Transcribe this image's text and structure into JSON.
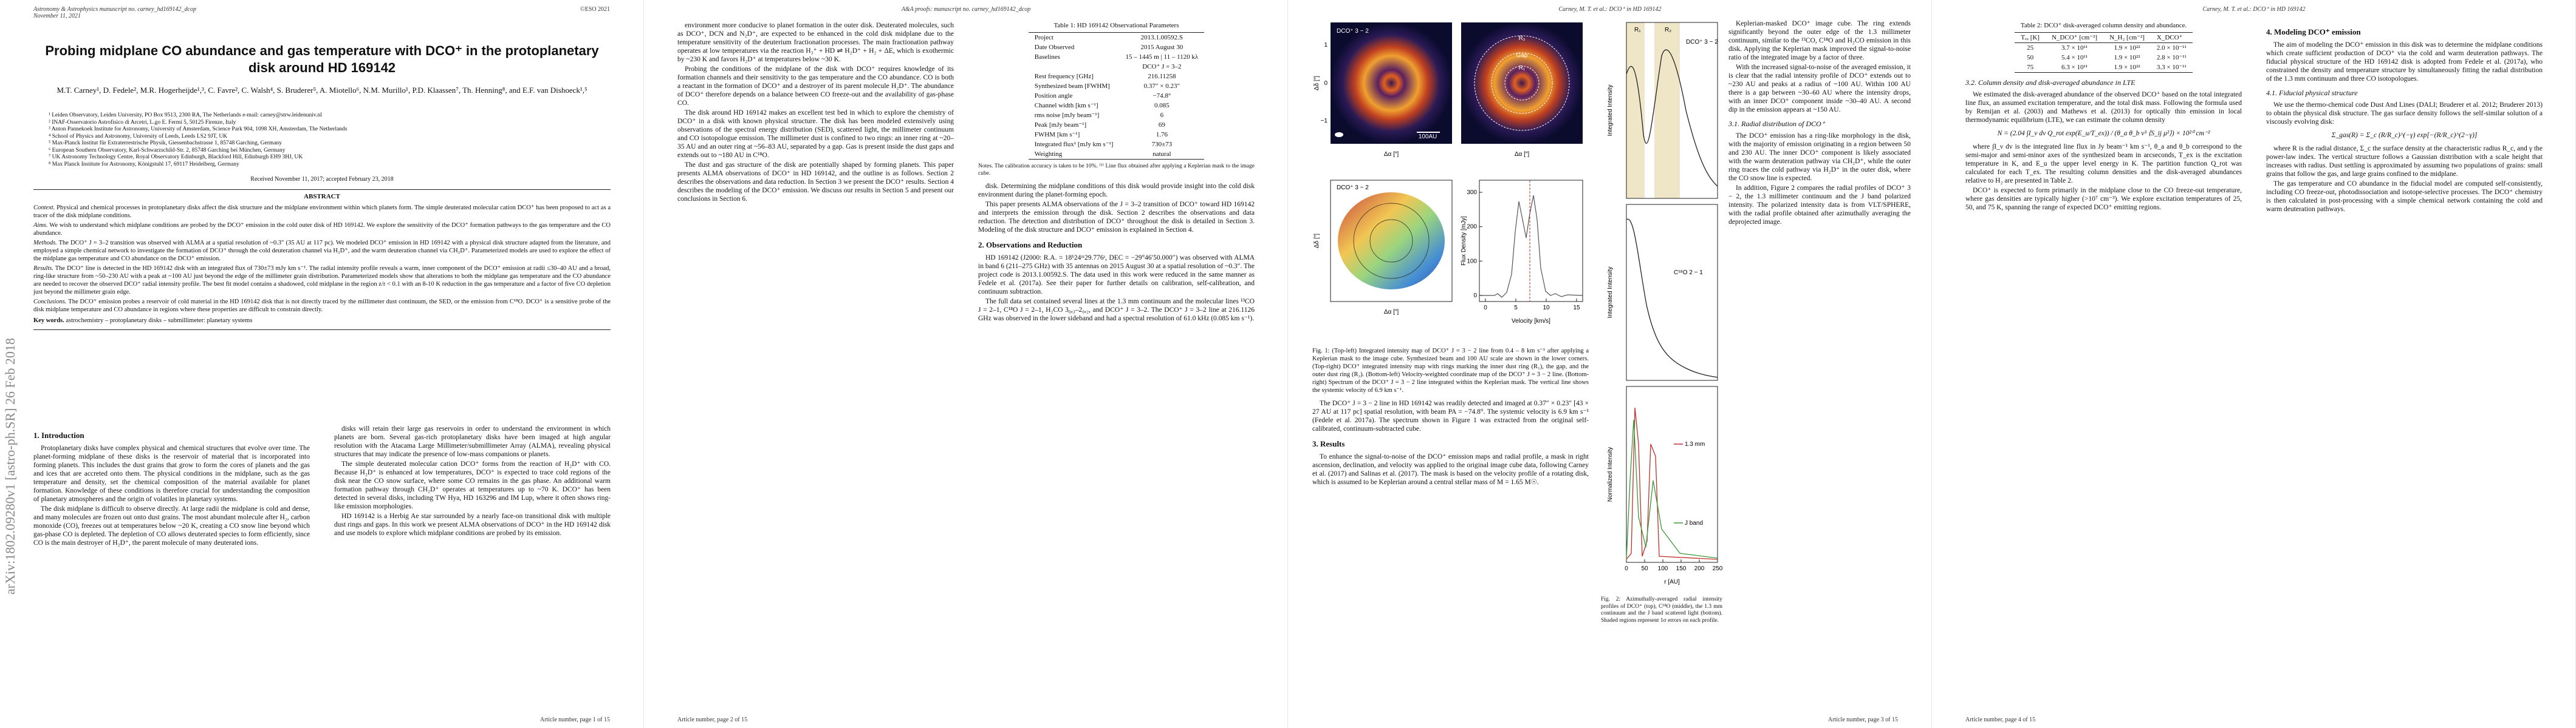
{
  "pages": [
    {
      "header": {
        "left": "Astronomy & Astrophysics manuscript no. carney_hd169142_dcop",
        "date": "November 11, 2021",
        "right": "©ESO 2021"
      },
      "title": "Probing midplane CO abundance and gas temperature with DCO⁺ in the protoplanetary disk around HD 169142",
      "authors": "M.T. Carney¹, D. Fedele², M.R. Hogerheijde¹,³, C. Favre², C. Walsh⁴, S. Bruderer⁵, A. Miotello⁶, N.M. Murillo¹, P.D. Klaassen⁷, Th. Henning⁸, and E.F. van Dishoeck¹,⁵",
      "affiliations": [
        "¹ Leiden Observatory, Leiden University, PO Box 9513, 2300 RA, The Netherlands  e-mail: carney@strw.leidenuniv.nl",
        "² INAF-Osservatorio Astrofisico di Arcetri, L.go E. Fermi 5, 50125 Firenze, Italy",
        "³ Anton Pannekoek Institute for Astronomy, University of Amsterdam, Science Park 904, 1098 XH, Amsterdam, The Netherlands",
        "⁴ School of Physics and Astronomy, University of Leeds, Leeds LS2 9JT, UK",
        "⁵ Max-Planck Institut für Extraterrestrische Physik, Giessenbachstrasse 1, 85748 Garching, Germany",
        "⁶ European Southern Observatory, Karl-Schwarzschild-Str. 2, 85748 Garching bei München, Germany",
        "⁷ UK Astronomy Technology Centre, Royal Observatory Edinburgh, Blackford Hill, Edinburgh EH9 3HJ, UK",
        "⁸ Max Planck Institute for Astronomy, Königstuhl 17, 69117 Heidelberg, Germany"
      ],
      "received": "Received November 11, 2017; accepted February 23, 2018",
      "abstract_heading": "ABSTRACT",
      "abstract": [
        {
          "label": "Context.",
          "text": "Physical and chemical processes in protoplanetary disks affect the disk structure and the midplane environment within which planets form. The simple deuterated molecular cation DCO⁺ has been proposed to act as a tracer of the disk midplane conditions."
        },
        {
          "label": "Aims.",
          "text": "We wish to understand which midplane conditions are probed by the DCO⁺ emission in the cold outer disk of HD 169142. We explore the sensitivity of the DCO⁺ formation pathways to the gas temperature and the CO abundance."
        },
        {
          "label": "Methods.",
          "text": "The DCO⁺ J = 3–2 transition was observed with ALMA at a spatial resolution of ~0.3″ (35 AU at 117 pc). We modeled DCO⁺ emission in HD 169142 with a physical disk structure adapted from the literature, and employed a simple chemical network to investigate the formation of DCO⁺ through the cold deuteration channel via H₂D⁺, and the warm deuteration channel via CH₂D⁺. Parameterized models are used to explore the effect of the midplane gas temperature and CO abundance on the DCO⁺ emission."
        },
        {
          "label": "Results.",
          "text": "The DCO⁺ line is detected in the HD 169142 disk with an integrated flux of 730±73 mJy km s⁻¹. The radial intensity profile reveals a warm, inner component of the DCO⁺ emission at radii ≤30–40 AU and a broad, ring-like structure from ~50–230 AU with a peak at ~100 AU just beyond the edge of the millimeter grain distribution. Parameterized models show that alterations to both the midplane gas temperature and the CO abundance are needed to recover the observed DCO⁺ radial intensity profile. The best fit model contains a shadowed, cold midplane in the region z/r < 0.1 with an 8-10 K reduction in the gas temperature and a factor of five CO depletion just beyond the millimeter grain edge."
        },
        {
          "label": "Conclusions.",
          "text": "The DCO⁺ emission probes a reservoir of cold material in the HD 169142 disk that is not directly traced by the millimeter dust continuum, the SED, or the emission from C¹⁸O. DCO⁺ is a sensitive probe of the disk midplane temperature and CO abundance in regions where these properties are difficult to constrain directly."
        }
      ],
      "keywords": {
        "label": "Key words.",
        "text": "astrochemistry – protoplanetary disks – submillimeter: planetary systems"
      },
      "left": [
        {
          "heading": "1. Introduction"
        },
        {
          "paragraph": "Protoplanetary disks have complex physical and chemical structures that evolve over time. The planet-forming midplane of these disks is the reservoir of material that is incorporated into forming planets. This includes the dust grains that grow to form the cores of planets and the gas and ices that are accreted onto them. The physical conditions in the midplane, such as the gas temperature and density, set the chemical composition of the material available for planet formation. Knowledge of these conditions is therefore crucial for understanding the composition of planetary atmospheres and the origin of volatiles in planetary systems."
        },
        {
          "paragraph": "The disk midplane is difficult to observe directly. At large radii the midplane is cold and dense, and many molecules are frozen out onto dust grains. The most abundant molecule after H₂, carbon monoxide (CO), freezes out at temperatures below ~20 K, creating a CO snow line beyond which gas-phase CO is depleted. The depletion of CO allows deuterated species to form efficiently, since CO is the main destroyer of H₂D⁺, the parent molecule of many deuterated ions."
        }
      ],
      "right": [
        {
          "paragraph": "disks will retain their large gas reservoirs in order to understand the environment in which planets are born. Several gas-rich protoplanetary disks have been imaged at high angular resolution with the Atacama Large Millimeter/submillimeter Array (ALMA), revealing physical structures that may indicate the presence of low-mass companions or planets."
        },
        {
          "paragraph": "The simple deuterated molecular cation DCO⁺ forms from the reaction of H₂D⁺ with CO. Because H₂D⁺ is enhanced at low temperatures, DCO⁺ is expected to trace cold regions of the disk near the CO snow surface, where some CO remains in the gas phase. An additional warm formation pathway through CH₂D⁺ operates at temperatures up to ~70 K. DCO⁺ has been detected in several disks, including TW Hya, HD 163296 and IM Lup, where it often shows ring-like emission morphologies."
        },
        {
          "paragraph": "HD 169142 is a Herbig Ae star surrounded by a nearly face-on transitional disk with multiple dust rings and gaps. In this work we present ALMA observations of DCO⁺ in the HD 169142 disk and use models to explore which midplane conditions are probed by its emission."
        }
      ],
      "footer": "Article number, page 1 of 15",
      "stamp": "arXiv:1802.09280v1 [astro-ph.SR] 26 Feb 2018"
    },
    {
      "header": "A&A proofs: manuscript no. carney_hd169142_dcop",
      "left": [
        {
          "paragraph": "environment more conducive to planet formation in the outer disk. Deuterated molecules, such as DCO⁺, DCN and N₂D⁺, are expected to be enhanced in the cold disk midplane due to the temperature sensitivity of the deuterium fractionation processes. The main fractionation pathway operates at low temperatures via the reaction H₃⁺ + HD ⇌ H₂D⁺ + H₂ + ΔE, which is exothermic by ~230 K and favors H₂D⁺ at temperatures below ~30 K."
        },
        {
          "paragraph": "Probing the conditions of the midplane of the disk with DCO⁺ requires knowledge of its formation channels and their sensitivity to the gas temperature and the CO abundance. CO is both a reactant in the formation of DCO⁺ and a destroyer of its parent molecule H₂D⁺. The abundance of DCO⁺ therefore depends on a balance between CO freeze-out and the availability of gas-phase CO."
        },
        {
          "paragraph": "The disk around HD 169142 makes an excellent test bed in which to explore the chemistry of DCO⁺ in a disk with known physical structure. The disk has been modeled extensively using observations of the spectral energy distribution (SED), scattered light, the millimeter continuum and CO isotopologue emission. The millimeter dust is confined to two rings: an inner ring at ~20–35 AU and an outer ring at ~56–83 AU, separated by a gap. Gas is present inside the dust gaps and extends out to ~180 AU in C¹⁸O."
        },
        {
          "paragraph": "The dust and gas structure of the disk are potentially shaped by forming planets. This paper presents ALMA observations of DCO⁺ in HD 169142, and the outline is as follows. Section 2 describes the observations and data reduction. In Section 3 we present the DCO⁺ results. Section 4 describes the modeling of the DCO⁺ emission. We discuss our results in Section 5 and present our conclusions in Section 6."
        }
      ],
      "table": {
        "caption": "Table 1: HD 169142 Observational Parameters",
        "rows": [
          [
            "Project",
            "2013.1.00592.S"
          ],
          [
            "Date Observed",
            "2015 August 30"
          ],
          [
            "Baselines",
            "15 – 1445 m | 11 – 1120 kλ"
          ],
          [
            "",
            "DCO⁺ J = 3–2"
          ],
          [
            "Rest frequency [GHz]",
            "216.11258"
          ],
          [
            "Synthesized beam [FWHM]",
            "0.37″ × 0.23″"
          ],
          [
            "Position angle",
            "−74.8°"
          ],
          [
            "Channel width [km s⁻¹]",
            "0.085"
          ],
          [
            "rms noise [mJy beam⁻¹]",
            "6"
          ],
          [
            "Peak [mJy beam⁻¹]",
            "69"
          ],
          [
            "FWHM [km s⁻¹]",
            "1.76"
          ],
          [
            "Integrated flux¹ [mJy km s⁻¹]",
            "730±73"
          ],
          [
            "Weighting",
            "natural"
          ]
        ],
        "note": "Notes. The calibration accuracy is taken to be 10%. ⁽¹⁾ Line flux obtained after applying a Keplerian mask to the image cube."
      },
      "right": [
        {
          "paragraph": "disk. Determining the midplane conditions of this disk would provide insight into the cold disk environment during the planet-forming epoch."
        },
        {
          "paragraph": "This paper presents ALMA observations of the J = 3–2 transition of DCO⁺ toward HD 169142 and interprets the emission through the disk. Section 2 describes the observations and data reduction. The detection and distribution of DCO⁺ throughout the disk is detailed in Section 3. Modeling of the disk structure and DCO⁺ emission is explained in Section 4."
        },
        {
          "heading": "2. Observations and Reduction"
        },
        {
          "paragraph": "HD 169142 (J2000: R.A. = 18ʰ24ᵐ29.776ˢ, DEC = −29°46′50.000″) was observed with ALMA in band 6 (211–275 GHz) with 35 antennas on 2015 August 30 at a spatial resolution of ~0.3″. The project code is 2013.1.00592.S. The data used in this work were reduced in the same manner as Fedele et al. (2017a). See their paper for further details on calibration, self-calibration, and continuum subtraction."
        },
        {
          "paragraph": "The full data set contained several lines at the 1.3 mm continuum and the molecular lines ¹³CO J = 2–1, C¹⁸O J = 2–1, H₂CO 3₀,₃–2₀,₂, and DCO⁺ J = 3–2. The DCO⁺ J = 3–2 line at 216.1126 GHz was observed in the lower sideband and had a spectral resolution of 61.0 kHz (0.085 km s⁻¹)."
        }
      ],
      "footer": "Article number, page 2 of 15"
    },
    {
      "header": "Carney, M. T. et al.: DCO⁺ in HD 169142",
      "figure_1": {
        "panel_title": "DCO⁺ 3 − 2",
        "scale_bar": "100AU",
        "rings": [
          "R₁",
          "Gap",
          "R₂"
        ],
        "x_label": "Δα [″]",
        "y_label": "Δδ [″]",
        "image_ticks": [
          1,
          0,
          "−1"
        ],
        "spectrum_y_label": "Flux Density [mJy]",
        "spectrum_x_label": "Velocity [km/s]",
        "spectrum_x_ticks": [
          0,
          5,
          10,
          15
        ],
        "spectrum_y_ticks": [
          0,
          100,
          200,
          300
        ],
        "caption": "Fig. 1: (Top-left) Integrated intensity map of DCO⁺ J = 3 − 2 line from 0.4 – 8 km s⁻¹ after applying a Keplerian mask to the image cube. Synthesized beam and 100 AU scale are shown in the lower corners. (Top-right) DCO⁺ integrated intensity map with rings marking the inner dust ring (R₁), the gap, and the outer dust ring (R₂). (Bottom-left) Velocity-weighted coordinate map of the DCO⁺ J = 3 − 2 line. (Bottom-right) Spectrum of the DCO⁺ J = 3 − 2 line integrated within the Keplerian mask. The vertical line shows the systemic velocity of 6.9 km s⁻¹."
      },
      "left": [
        {
          "paragraph": "The DCO⁺ J = 3 − 2 line in HD 169142 was readily detected and imaged at 0.37″ × 0.23″ [43 × 27 AU at 117 pc] spatial resolution, with beam PA = −74.8°. The systemic velocity is 6.9 km s⁻¹ (Fedele et al. 2017a). The spectrum shown in Figure 1 was extracted from the original self-calibrated, continuum-subtracted cube."
        },
        {
          "heading": "3. Results"
        },
        {
          "paragraph": "To enhance the signal-to-noise of the DCO⁺ emission maps and radial profile, a mask in right ascension, declination, and velocity was applied to the original image cube data, following Carney et al. (2017) and Salinas et al. (2017). The mask is based on the velocity profile of a rotating disk, which is assumed to be Keplerian around a central stellar mass of M = 1.65 M☉."
        }
      ],
      "figure_2": {
        "legend": [
          "DCO⁺ 3 − 2",
          "C¹⁸O 2 − 1",
          "1.3 mm",
          "J band"
        ],
        "rings": [
          "R₁",
          "R₂"
        ],
        "y_labels": [
          "Integrated Intensity",
          "Integrated Intensity",
          "Normalized Intensity"
        ],
        "x_label": "r [AU]",
        "x_ticks": [
          0,
          50,
          100,
          150,
          200,
          250
        ],
        "caption": "Fig. 2: Azimuthally-averaged radial intensity profiles of DCO⁺ (top), C¹⁸O (middle), the 1.3 mm continuum and the J band scattered light (bottom). Shaded regions represent 1σ errors on each profile."
      },
      "right": [
        {
          "paragraph": "Keplerian-masked DCO⁺ image cube. The ring extends significantly beyond the outer edge of the 1.3 millimeter continuum, similar to the ¹³CO, C¹⁸O and H₂CO emission in this disk. Applying the Keplerian mask improved the signal-to-noise ratio of the integrated image by a factor of three."
        },
        {
          "paragraph": "With the increased signal-to-noise of the averaged emission, it is clear that the radial intensity profile of DCO⁺ extends out to ~230 AU and peaks at a radius of ~100 AU. Within 100 AU there is a gap between ~30–60 AU where the intensity drops, with an inner DCO⁺ component inside ~30–40 AU. A second dip in the emission appears at ~150 AU."
        },
        {
          "subheading": "3.1. Radial distribution of DCO⁺"
        },
        {
          "paragraph": "The DCO⁺ emission has a ring-like morphology in the disk, with the majority of emission originating in a region between 50 and 230 AU. The inner DCO⁺ component is likely associated with the warm deuteration pathway via CH₂D⁺, while the outer ring traces the cold pathway via H₂D⁺ in the outer disk, where the CO snow line is expected."
        },
        {
          "paragraph": "In addition, Figure 2 compares the radial profiles of DCO⁺ 3 − 2, the 1.3 millimeter continuum and the J band polarized intensity. The polarized intensity data is from VLT/SPHERE, with the radial profile obtained after azimuthally averaging the deprojected image."
        }
      ],
      "footer": "Article number, page 3 of 15"
    },
    {
      "header": "Carney, M. T. et al.: DCO⁺ in HD 169142",
      "table": {
        "caption": "Table 2: DCO⁺ disk-averaged column density and abundance.",
        "head": [
          "Tₑₓ [K]",
          "N_DCO⁺ [cm⁻²]",
          "N_H₂ [cm⁻²]",
          "X_DCO⁺"
        ],
        "rows": [
          [
            "25",
            "3.7 × 10¹¹",
            "1.9 × 10²²",
            "2.0 × 10⁻¹¹"
          ],
          [
            "50",
            "5.4 × 10¹¹",
            "1.9 × 10²²",
            "2.8 × 10⁻¹¹"
          ],
          [
            "75",
            "6.3 × 10¹¹",
            "1.9 × 10²²",
            "3.3 × 10⁻¹¹"
          ]
        ]
      },
      "left": [
        {
          "subheading": "3.2. Column density and disk-averaged abundance in LTE"
        },
        {
          "paragraph": "We estimated the disk-averaged abundance of the observed DCO⁺ based on the total integrated line flux, an assumed excitation temperature, and the total disk mass. Following the formula used by Remijan et al. (2003) and Mathews et al. (2013) for optically thin emission in local thermodynamic equilibrium (LTE), we can estimate the column density"
        },
        {
          "equation": "N = (2.04 ∫I_ν dv Q_rot exp(E_u/T_ex)) / (θ_a θ_b ν³ ⟨S_ij μ²⟩)  × 10²⁰ cm⁻²"
        },
        {
          "paragraph": "where ∫I_ν dv is the integrated line flux in Jy beam⁻¹ km s⁻¹, θ_a and θ_b correspond to the semi-major and semi-minor axes of the synthesized beam in arcseconds, T_ex is the excitation temperature in K, and E_u the upper level energy in K. The partition function Q_rot was calculated for each T_ex. The resulting column densities and the disk-averaged abundances relative to H₂ are presented in Table 2."
        },
        {
          "paragraph": "DCO⁺ is expected to form primarily in the midplane close to the CO freeze-out temperature, where gas densities are typically higher (>10⁷ cm⁻³). We explore excitation temperatures of 25, 50, and 75 K, spanning the range of expected DCO⁺ emitting regions."
        }
      ],
      "right": [
        {
          "heading": "4. Modeling DCO⁺ emission"
        },
        {
          "paragraph": "The aim of modeling the DCO⁺ emission in this disk was to determine the midplane conditions which create sufficient production of DCO⁺ via the cold and warm deuteration pathways. The fiducial physical structure of the HD 169142 disk is adopted from Fedele et al. (2017a), who constrained the density and temperature structure by simultaneously fitting the radial distribution of the 1.3 mm continuum and three CO isotopologues."
        },
        {
          "subheading": "4.1. Fiducial physical structure"
        },
        {
          "paragraph": "We use the thermo-chemical code Dust And Lines (DALI; Bruderer et al. 2012; Bruderer 2013) to obtain the physical disk structure. The gas surface density follows the self-similar solution of a viscously evolving disk:"
        },
        {
          "equation": "Σ_gas(R) = Σ_c (R/R_c)^(−γ) exp[−(R/R_c)^(2−γ)]"
        },
        {
          "paragraph": "where R is the radial distance, Σ_c the surface density at the characteristic radius R_c, and γ the power-law index. The vertical structure follows a Gaussian distribution with a scale height that increases with radius. Dust settling is approximated by assuming two populations of grains: small grains that follow the gas, and large grains confined to the midplane."
        },
        {
          "paragraph": "The gas temperature and CO abundance in the fiducial model are computed self-consistently, including CO freeze-out, photodissociation and isotope-selective processes. The DCO⁺ chemistry is then calculated in post-processing with a simple chemical network containing the cold and warm deuteration pathways."
        }
      ],
      "footer": "Article number, page 4 of 15"
    }
  ]
}
